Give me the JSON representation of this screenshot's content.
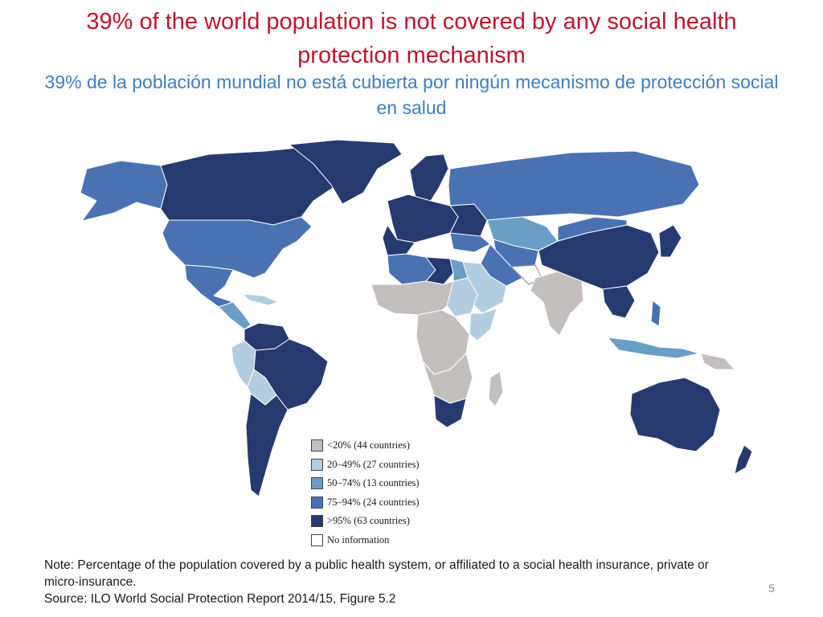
{
  "title": {
    "en": "39% of the world population is not covered by any social health protection mechanism",
    "es": "39% de la población mundial no está cubierta por ningún mecanismo de protección social en salud"
  },
  "legend": {
    "items": [
      {
        "label": "<20% (44 countries)",
        "color": "#c3bfbe"
      },
      {
        "label": "20–49% (27 countries)",
        "color": "#b3cde0"
      },
      {
        "label": "50–74% (13 countries)",
        "color": "#6a9ec5"
      },
      {
        "label": "75–94% (24 countries)",
        "color": "#4a72b3"
      },
      {
        "label": ">95% (63 countries)",
        "color": "#263a70"
      },
      {
        "label": "No information",
        "color": "#ffffff"
      }
    ]
  },
  "note": {
    "line1": "Note: Percentage of the population covered by a public health system, or affiliated to a social health insurance, private or micro-insurance.",
    "source": "Source: ILO World Social Protection Report 2014/15, Figure 5.2"
  },
  "page_number": "5"
}
